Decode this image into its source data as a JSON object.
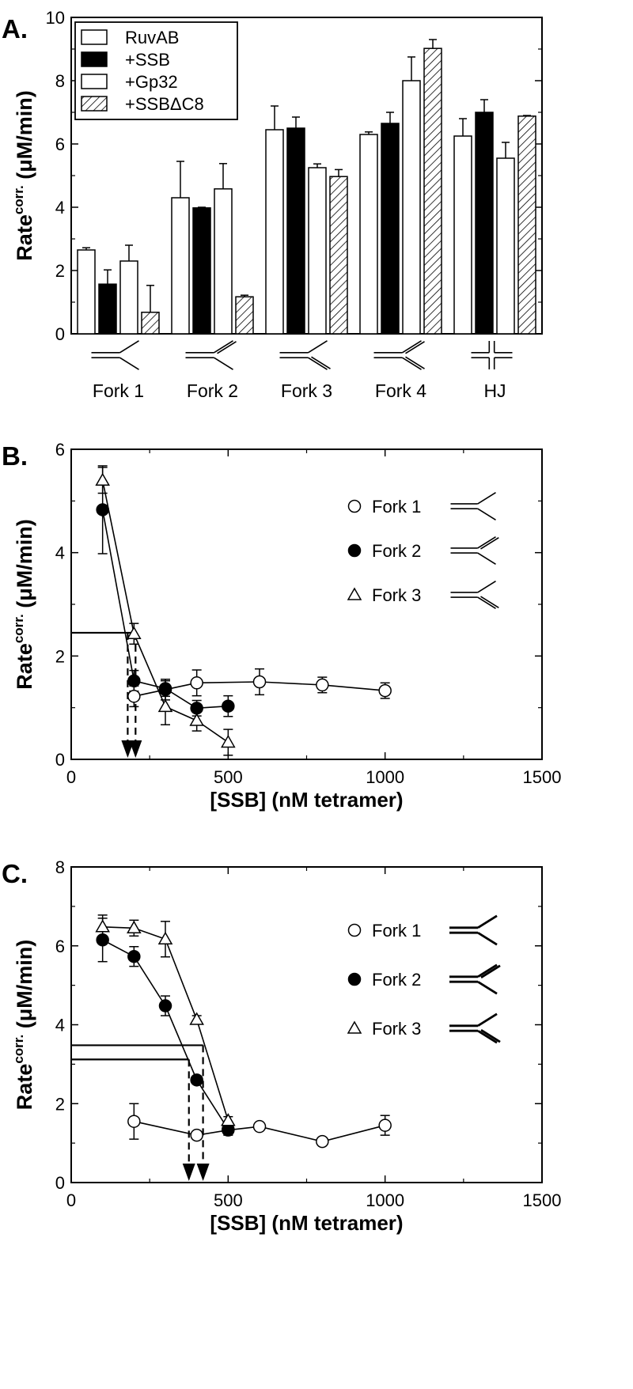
{
  "chart_data": [
    {
      "panel": "A.",
      "type": "bar",
      "ylabel_main": "Rate",
      "ylabel_sup": "corr.",
      "ylabel_unit": "(μM/min)",
      "ylim": [
        0,
        10
      ],
      "yticks": [
        "0",
        "2",
        "4",
        "6",
        "8",
        "10"
      ],
      "categories": [
        "Fork 1",
        "Fork 2",
        "Fork 3",
        "Fork 4",
        "HJ"
      ],
      "category_icons": [
        "fork1-icon",
        "fork2-icon",
        "fork3-icon",
        "fork4-icon",
        "holliday-junction-icon"
      ],
      "legend_position": "top-left",
      "series": [
        {
          "name": "RuvAB",
          "fill": "white",
          "values": [
            2.65,
            4.3,
            6.45,
            6.3,
            6.25
          ],
          "errors": [
            0.07,
            1.15,
            0.75,
            0.08,
            0.55
          ]
        },
        {
          "name": "+SSB",
          "fill": "black",
          "values": [
            1.57,
            3.98,
            6.5,
            6.65,
            7.0
          ],
          "errors": [
            0.45,
            0.02,
            0.35,
            0.35,
            0.4
          ]
        },
        {
          "name": "+Gp32",
          "fill": "white",
          "values": [
            2.3,
            4.58,
            5.25,
            8.0,
            5.55
          ],
          "errors": [
            0.5,
            0.8,
            0.12,
            0.75,
            0.5
          ]
        },
        {
          "name": "+SSBΔC8",
          "fill": "hatch",
          "values": [
            0.68,
            1.17,
            4.97,
            9.02,
            6.88
          ],
          "errors": [
            0.85,
            0.05,
            0.22,
            0.28,
            0.02
          ]
        }
      ]
    },
    {
      "panel": "B.",
      "type": "line",
      "ylabel_main": "Rate",
      "ylabel_sup": "corr.",
      "ylabel_unit": "(μM/min)",
      "xlabel": "[SSB] (nM tetramer)",
      "xlim": [
        0,
        1500
      ],
      "ylim": [
        0,
        6
      ],
      "xticks": [
        "0",
        "500",
        "1000",
        "1500"
      ],
      "yticks": [
        "0",
        "2",
        "4",
        "6"
      ],
      "legend_position": "top-right",
      "series": [
        {
          "name": "Fork 1",
          "marker": "open-circle",
          "icon": "fork1-icon",
          "x": [
            200,
            300,
            400,
            600,
            800,
            1000
          ],
          "y": [
            1.22,
            1.35,
            1.48,
            1.5,
            1.44,
            1.33
          ],
          "err": [
            0.2,
            0.2,
            0.25,
            0.25,
            0.15,
            0.15
          ]
        },
        {
          "name": "Fork 2",
          "marker": "filled-circle",
          "icon": "fork2-icon",
          "x": [
            100,
            200,
            300,
            400,
            500
          ],
          "y": [
            4.83,
            1.52,
            1.37,
            0.99,
            1.03
          ],
          "err": [
            0.85,
            0.2,
            0.15,
            0.15,
            0.2
          ]
        },
        {
          "name": "Fork 3",
          "marker": "open-triangle",
          "icon": "fork3-icon",
          "x": [
            100,
            200,
            300,
            400,
            500
          ],
          "y": [
            5.4,
            2.43,
            1.02,
            0.75,
            0.33
          ],
          "err": [
            0.25,
            0.2,
            0.35,
            0.2,
            0.25
          ]
        }
      ],
      "reference_lines": {
        "y": [
          2.45
        ],
        "x_end": 200
      },
      "dashed_drops": [
        180,
        205
      ]
    },
    {
      "panel": "C.",
      "type": "line",
      "ylabel_main": "Rate",
      "ylabel_sup": "corr.",
      "ylabel_unit": "(μM/min)",
      "xlabel": "[SSB] (nM tetramer)",
      "xlim": [
        0,
        1500
      ],
      "ylim": [
        0,
        8
      ],
      "xticks": [
        "0",
        "500",
        "1000",
        "1500"
      ],
      "yticks": [
        "0",
        "2",
        "4",
        "6",
        "8"
      ],
      "legend_position": "top-right",
      "series": [
        {
          "name": "Fork 1",
          "marker": "open-circle",
          "icon": "fork1-icon",
          "x": [
            200,
            400,
            500,
            600,
            800,
            1000
          ],
          "y": [
            1.55,
            1.2,
            1.33,
            1.42,
            1.04,
            1.45
          ],
          "err": [
            0.45,
            0.1,
            0.1,
            0.1,
            0.08,
            0.25
          ]
        },
        {
          "name": "Fork 2",
          "marker": "filled-circle",
          "icon": "fork2-icon",
          "x": [
            100,
            200,
            300,
            400,
            500
          ],
          "y": [
            6.15,
            5.73,
            4.48,
            2.6,
            1.35
          ],
          "err": [
            0.55,
            0.25,
            0.25,
            0.1,
            0.15
          ]
        },
        {
          "name": "Fork 3",
          "marker": "open-triangle",
          "icon": "fork3-icon",
          "x": [
            100,
            200,
            300,
            400,
            500
          ],
          "y": [
            6.48,
            6.45,
            6.17,
            4.13,
            1.57
          ],
          "err": [
            0.3,
            0.2,
            0.45,
            0.1,
            0.1
          ]
        }
      ],
      "reference_lines": {
        "y": [
          3.12,
          3.48
        ],
        "x_end": [
          375,
          420
        ]
      },
      "dashed_drops": [
        375,
        420
      ]
    }
  ]
}
